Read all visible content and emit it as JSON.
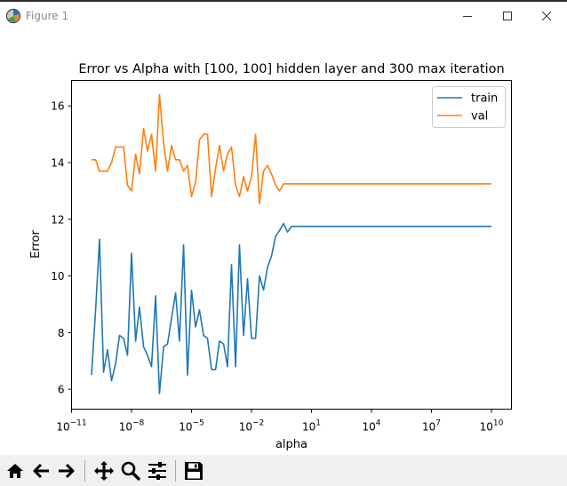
{
  "window": {
    "title": "Figure 1"
  },
  "toolbar": {
    "buttons": [
      {
        "name": "home-button",
        "icon": "home-icon"
      },
      {
        "name": "back-button",
        "icon": "arrow-left-icon"
      },
      {
        "name": "forward-button",
        "icon": "arrow-right-icon"
      },
      {
        "name": "pan-button",
        "icon": "move-icon"
      },
      {
        "name": "zoom-button",
        "icon": "magnifier-icon"
      },
      {
        "name": "configure-subplots-button",
        "icon": "sliders-icon"
      },
      {
        "name": "save-button",
        "icon": "floppy-disk-icon"
      }
    ]
  },
  "chart_data": {
    "type": "line",
    "title": "Error vs Alpha with [100, 100] hidden layer and 300 max iteration",
    "xlabel": "alpha",
    "ylabel": "Error",
    "xscale": "log",
    "xlim": [
      1e-11,
      100000000000.0
    ],
    "ylim": [
      5.3,
      16.9
    ],
    "xticks": [
      {
        "base": "10",
        "exp": "−11",
        "value": 1e-11
      },
      {
        "base": "10",
        "exp": "−8",
        "value": 1e-08
      },
      {
        "base": "10",
        "exp": "−5",
        "value": 1e-05
      },
      {
        "base": "10",
        "exp": "−2",
        "value": 0.01
      },
      {
        "base": "10",
        "exp": "1",
        "value": 10
      },
      {
        "base": "10",
        "exp": "4",
        "value": 10000.0
      },
      {
        "base": "10",
        "exp": "7",
        "value": 10000000.0
      },
      {
        "base": "10",
        "exp": "10",
        "value": 10000000000.0
      }
    ],
    "yticks": [
      {
        "label": "6",
        "value": 6
      },
      {
        "label": "8",
        "value": 8
      },
      {
        "label": "10",
        "value": 10
      },
      {
        "label": "12",
        "value": 12
      },
      {
        "label": "14",
        "value": 14
      },
      {
        "label": "16",
        "value": 16
      }
    ],
    "grid": false,
    "legend_position": "top-right",
    "x": [
      1e-10,
      1.6e-10,
      2.5e-10,
      4e-10,
      6.3e-10,
      1e-09,
      1.6e-09,
      2.5e-09,
      4e-09,
      6.3e-09,
      1e-08,
      1.6e-08,
      2.5e-08,
      4e-08,
      6.3e-08,
      1e-07,
      1.6e-07,
      2.5e-07,
      4e-07,
      6.3e-07,
      1e-06,
      1.6e-06,
      2.5e-06,
      4e-06,
      6.3e-06,
      1e-05,
      1.6e-05,
      2.5e-05,
      4e-05,
      6.3e-05,
      0.0001,
      0.00016,
      0.00025,
      0.0004,
      0.00063,
      0.001,
      0.0016,
      0.0025,
      0.004,
      0.0063,
      0.01,
      0.016,
      0.025,
      0.04,
      0.063,
      0.1,
      0.16,
      0.25,
      0.4,
      0.63,
      1,
      10000000000.0
    ],
    "series": [
      {
        "name": "train",
        "color": "#1f77b4",
        "values": [
          6.5,
          8.8,
          11.3,
          6.6,
          7.4,
          6.3,
          6.9,
          7.9,
          7.8,
          7.2,
          10.8,
          7.7,
          8.9,
          7.5,
          7.2,
          6.8,
          9.3,
          5.85,
          7.5,
          7.6,
          8.5,
          9.4,
          7.7,
          11.1,
          6.5,
          9.5,
          8.2,
          8.8,
          7.9,
          7.8,
          6.7,
          6.7,
          7.7,
          7.6,
          6.8,
          10.4,
          6.8,
          11.1,
          7.9,
          9.9,
          7.8,
          7.8,
          10.0,
          9.5,
          10.3,
          10.7,
          11.4,
          11.6,
          11.85,
          11.55,
          11.75,
          11.75
        ]
      },
      {
        "name": "val",
        "color": "#ff7f0e",
        "values": [
          14.1,
          14.1,
          13.7,
          13.7,
          13.7,
          14.0,
          14.55,
          14.55,
          14.55,
          13.2,
          13.0,
          14.3,
          13.6,
          15.2,
          14.4,
          15.0,
          13.7,
          16.4,
          14.7,
          13.7,
          14.6,
          14.1,
          14.1,
          13.7,
          13.9,
          12.8,
          13.3,
          14.8,
          15.0,
          15.0,
          12.8,
          13.8,
          14.6,
          13.7,
          14.3,
          14.55,
          13.2,
          12.8,
          13.5,
          13.0,
          13.5,
          15.0,
          12.55,
          13.7,
          13.9,
          13.6,
          13.2,
          13.0,
          13.25,
          13.25,
          13.25,
          13.25
        ]
      }
    ]
  }
}
